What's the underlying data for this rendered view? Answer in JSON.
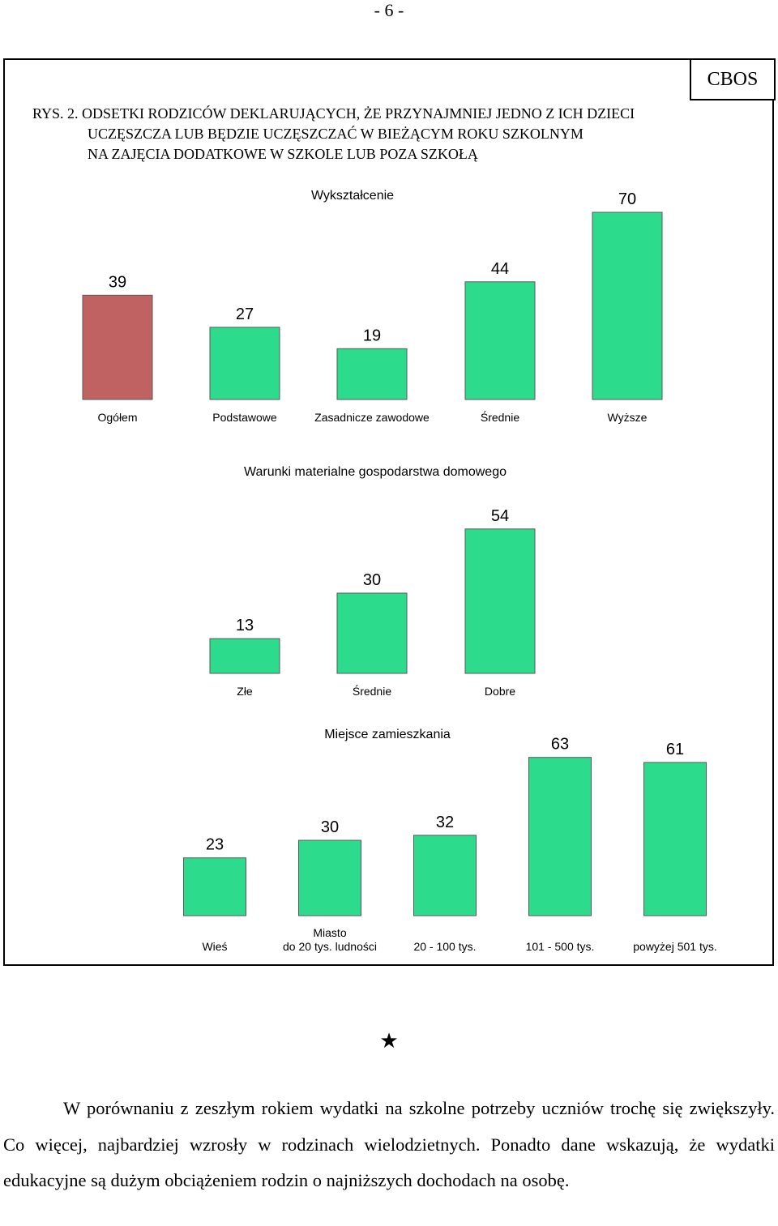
{
  "page_number": "- 6 -",
  "source_badge": "CBOS",
  "figure_title": {
    "prefix": "RYS. 2.",
    "line1": "ODSETKI RODZICÓW DEKLARUJĄCYCH, ŻE PRZYNAJMNIEJ JEDNO Z ICH DZIECI",
    "line2": "UCZĘSZCZA LUB BĘDZIE UCZĘSZCZAĆ W BIEŻĄCYM ROKU SZKOLNYM",
    "line3": "NA ZAJĘCIA DODATKOWE W SZKOLE LUB POZA SZKOŁĄ"
  },
  "colors": {
    "highlight_bar": "#c06262",
    "bar": "#2ddb8c",
    "bar_stroke": "#5a5a5a"
  },
  "chart_data": [
    {
      "type": "bar",
      "title": "Wykształcenie",
      "categories": [
        "Ogółem",
        "Podstawowe",
        "Zasadnicze zawodowe",
        "Średnie",
        "Wyższe"
      ],
      "values": [
        39,
        27,
        19,
        44,
        70
      ],
      "highlight_index": 0,
      "ylim": [
        0,
        70
      ],
      "grid": false
    },
    {
      "type": "bar",
      "title": "Warunki materialne gospodarstwa domowego",
      "categories": [
        "Złe",
        "Średnie",
        "Dobre"
      ],
      "values": [
        13,
        30,
        54
      ],
      "ylim": [
        0,
        54
      ],
      "grid": false
    },
    {
      "type": "bar",
      "title": "Miejsce zamieszkania",
      "categories": [
        "Wieś",
        "Miasto\ndo 20 tys. ludności",
        "20 - 100 tys.",
        "101 - 500 tys.",
        "powyżej 501 tys."
      ],
      "values": [
        23,
        30,
        32,
        63,
        61
      ],
      "ylim": [
        0,
        63
      ],
      "grid": false
    }
  ],
  "separator_symbol": "★",
  "body_paragraph": "W porównaniu z zeszłym rokiem wydatki na szkolne potrzeby uczniów trochę się zwiększyły. Co więcej, najbardziej wzrosły w rodzinach wielodzietnych. Ponadto dane wskazują, że wydatki edukacyjne są dużym obciążeniem rodzin o najniższych dochodach na osobę."
}
